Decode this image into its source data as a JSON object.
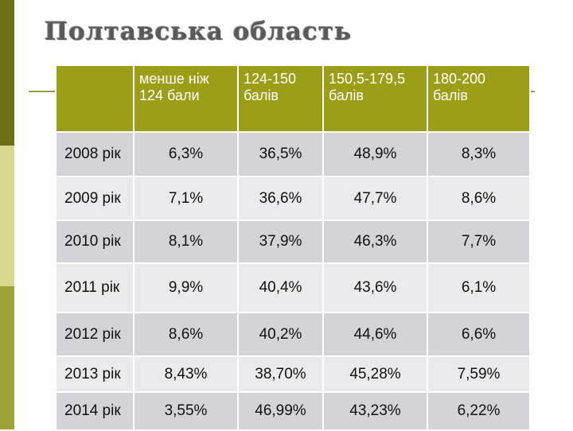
{
  "title": "Полтавська область",
  "table": {
    "headers": [
      "",
      "менше ніж 124 бали",
      "124-150 балів",
      "150,5-179,5 балів",
      "180-200 балів"
    ],
    "rows": [
      [
        "2008 рік",
        "6,3%",
        "36,5%",
        "48,9%",
        "8,3%"
      ],
      [
        "2009 рік",
        "7,1%",
        "36,6%",
        "47,7%",
        "8,6%"
      ],
      [
        "2010 рік",
        "8,1%",
        "37,9%",
        "46,3%",
        "7,7%"
      ],
      [
        "2011 рік",
        "9,9%",
        "40,4%",
        "43,6%",
        "6,1%"
      ],
      [
        "2012 рік",
        "8,6%",
        "40,2%",
        "44,6%",
        "6,6%"
      ],
      [
        "2013 рік",
        "8,43%",
        "38,70%",
        "45,28%",
        "7,59%"
      ],
      [
        "2014 рік",
        "3,55%",
        "46,99%",
        "43,23%",
        "6,22%"
      ]
    ]
  },
  "colors": {
    "header_bg": "#9c9e18",
    "row_dark": "#d3d3d8",
    "row_light": "#eaeaec",
    "stripe_dark": "#6e6e14",
    "stripe_light": "#d6d88f",
    "stripe_mid": "#9fa238"
  }
}
